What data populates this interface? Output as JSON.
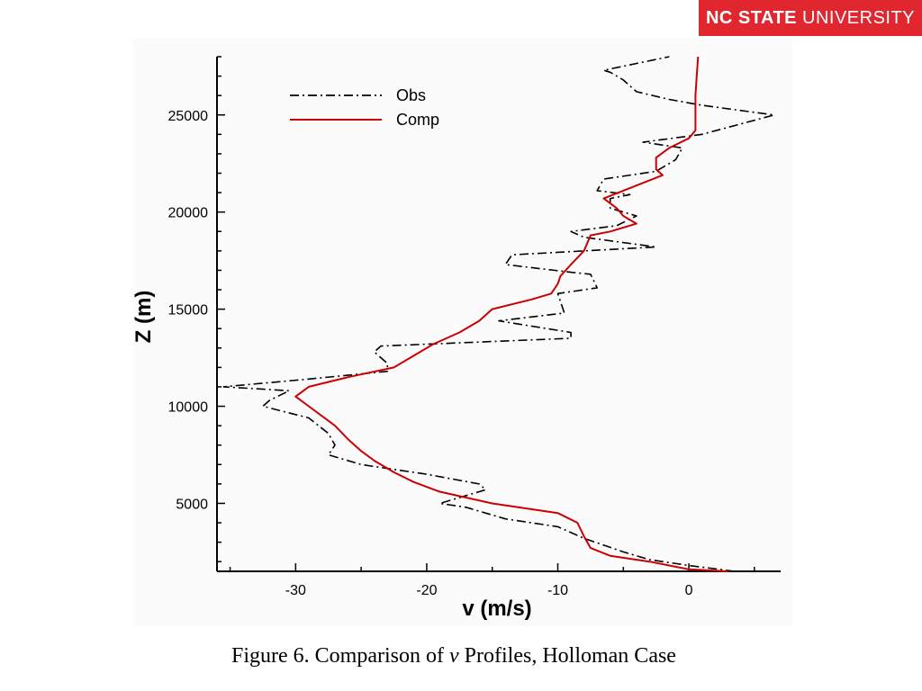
{
  "logo": {
    "bold": "NC STATE",
    "light": "UNIVERSITY",
    "color": "#e0262f"
  },
  "caption": {
    "prefix": "Figure 6.  Comparison of ",
    "italic": "v",
    "suffix": " Profiles, Holloman Case"
  },
  "chart_data": {
    "type": "line",
    "title": "",
    "xlabel": "v (m/s)",
    "ylabel": "Z (m)",
    "xlim": [
      -36,
      7
    ],
    "ylim": [
      1500,
      28000
    ],
    "xticks": [
      -30,
      -20,
      -10,
      0
    ],
    "yticks": [
      5000,
      10000,
      15000,
      20000,
      25000
    ],
    "legend": {
      "placement": "top-left"
    },
    "grid": false,
    "series": [
      {
        "name": "Obs",
        "color": "#000000",
        "style": "dash-dot",
        "points": [
          [
            3.5,
            1500
          ],
          [
            0,
            1800
          ],
          [
            -3,
            2100
          ],
          [
            -5,
            2500
          ],
          [
            -8,
            3200
          ],
          [
            -10,
            3800
          ],
          [
            -14,
            4200
          ],
          [
            -17,
            4800
          ],
          [
            -19,
            5000
          ],
          [
            -16,
            5600
          ],
          [
            -15.5,
            5700
          ],
          [
            -16,
            6000
          ],
          [
            -20,
            6500
          ],
          [
            -25,
            7000
          ],
          [
            -27.5,
            7500
          ],
          [
            -27,
            8000
          ],
          [
            -27.5,
            8600
          ],
          [
            -29,
            9400
          ],
          [
            -32.5,
            10000
          ],
          [
            -32,
            10300
          ],
          [
            -30.5,
            10800
          ],
          [
            -35.5,
            11000
          ],
          [
            -29,
            11400
          ],
          [
            -23,
            11800
          ],
          [
            -23,
            12200
          ],
          [
            -24,
            12800
          ],
          [
            -23.5,
            13100
          ],
          [
            -9,
            13500
          ],
          [
            -9,
            13800
          ],
          [
            -14.5,
            14400
          ],
          [
            -9.5,
            14800
          ],
          [
            -10,
            15800
          ],
          [
            -7,
            16100
          ],
          [
            -7.5,
            16800
          ],
          [
            -9,
            16900
          ],
          [
            -14,
            17300
          ],
          [
            -13.5,
            17800
          ],
          [
            -2.5,
            18200
          ],
          [
            -8,
            18700
          ],
          [
            -9,
            19000
          ],
          [
            -5.5,
            19300
          ],
          [
            -4,
            19800
          ],
          [
            -6,
            20200
          ],
          [
            -6,
            20700
          ],
          [
            -4.5,
            20900
          ],
          [
            -7,
            21100
          ],
          [
            -6.5,
            21700
          ],
          [
            -2.5,
            22100
          ],
          [
            -1,
            22700
          ],
          [
            -0.5,
            23300
          ],
          [
            -3.5,
            23600
          ],
          [
            1,
            24000
          ],
          [
            6.5,
            25000
          ],
          [
            1,
            25500
          ],
          [
            -1.5,
            25800
          ],
          [
            -4,
            26200
          ],
          [
            -5,
            26800
          ],
          [
            -6,
            27200
          ],
          [
            -6.5,
            27300
          ],
          [
            -1.5,
            28000
          ]
        ]
      },
      {
        "name": "Comp",
        "color": "#cc0000",
        "style": "solid",
        "points": [
          [
            3,
            1500
          ],
          [
            0,
            1600
          ],
          [
            -1.5,
            1800
          ],
          [
            -3,
            2000
          ],
          [
            -6,
            2300
          ],
          [
            -7.5,
            2700
          ],
          [
            -8,
            3300
          ],
          [
            -8.5,
            4000
          ],
          [
            -10,
            4500
          ],
          [
            -15,
            5000
          ],
          [
            -19,
            5600
          ],
          [
            -21,
            6100
          ],
          [
            -22.5,
            6600
          ],
          [
            -24,
            7200
          ],
          [
            -25,
            7700
          ],
          [
            -26,
            8300
          ],
          [
            -27,
            9000
          ],
          [
            -29,
            10000
          ],
          [
            -30,
            10500
          ],
          [
            -29,
            11000
          ],
          [
            -26,
            11500
          ],
          [
            -22.5,
            12000
          ],
          [
            -21,
            12600
          ],
          [
            -19.5,
            13200
          ],
          [
            -17.5,
            13800
          ],
          [
            -16,
            14400
          ],
          [
            -15,
            15000
          ],
          [
            -12,
            15500
          ],
          [
            -10.5,
            15800
          ],
          [
            -10,
            16300
          ],
          [
            -9.8,
            16700
          ],
          [
            -9,
            17300
          ],
          [
            -8,
            18000
          ],
          [
            -7.5,
            18800
          ],
          [
            -6,
            19000
          ],
          [
            -4,
            19400
          ],
          [
            -5,
            19800
          ],
          [
            -5.5,
            20200
          ],
          [
            -6.5,
            20700
          ],
          [
            -5,
            21100
          ],
          [
            -3.5,
            21500
          ],
          [
            -2,
            21900
          ],
          [
            -2.5,
            22200
          ],
          [
            -2.5,
            22800
          ],
          [
            -1.5,
            23300
          ],
          [
            0,
            23800
          ],
          [
            0.5,
            24200
          ],
          [
            0.5,
            25000
          ],
          [
            0.5,
            26000
          ],
          [
            0.6,
            27000
          ],
          [
            0.7,
            28000
          ]
        ]
      }
    ]
  }
}
